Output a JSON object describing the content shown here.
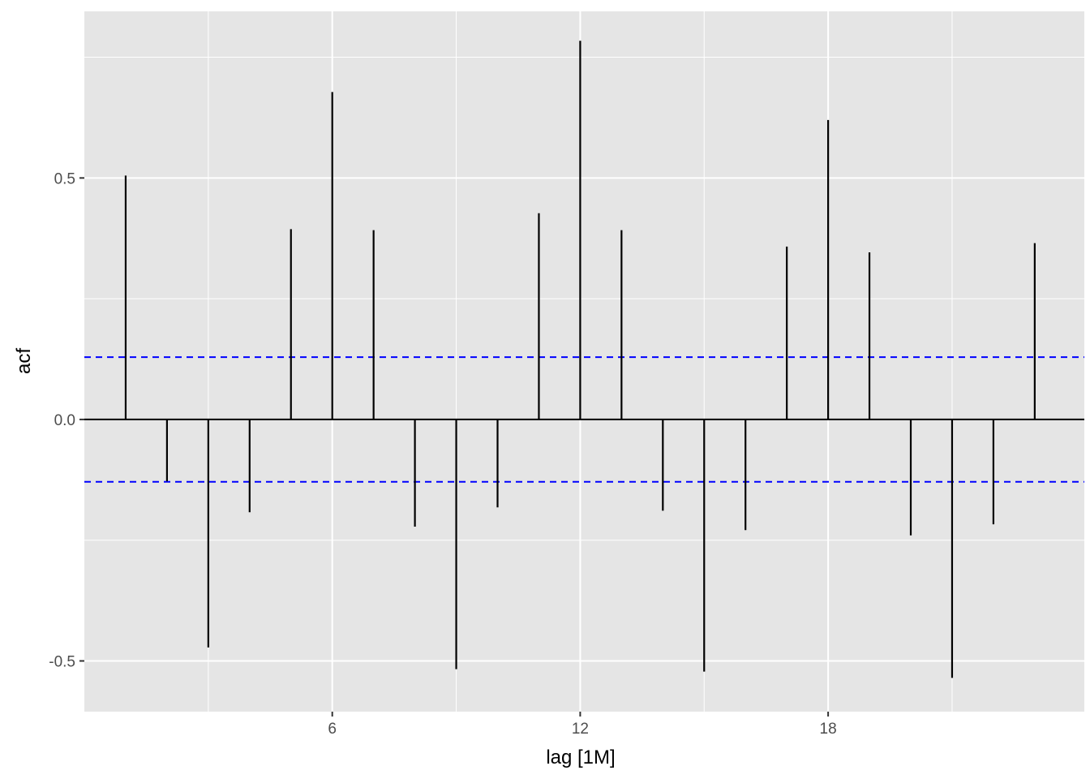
{
  "chart_data": {
    "type": "bar",
    "xlabel": "lag [1M]",
    "ylabel": "acf",
    "x": [
      1,
      2,
      3,
      4,
      5,
      6,
      7,
      8,
      9,
      10,
      11,
      12,
      13,
      14,
      15,
      16,
      17,
      18,
      19,
      20,
      21,
      22,
      23
    ],
    "values": [
      0.505,
      -0.128,
      -0.472,
      -0.192,
      0.394,
      0.678,
      0.392,
      -0.222,
      -0.517,
      -0.182,
      0.427,
      0.784,
      0.392,
      -0.189,
      -0.522,
      -0.229,
      0.358,
      0.62,
      0.346,
      -0.24,
      -0.535,
      -0.217,
      0.365
    ],
    "confidence_bounds": [
      0.129,
      -0.129
    ],
    "xlim": [
      0.0,
      24.2
    ],
    "ylim": [
      -0.605,
      0.845
    ],
    "x_ticks": [
      6,
      12,
      18
    ],
    "x_tick_labels": [
      "6",
      "12",
      "18"
    ],
    "y_ticks": [
      -0.5,
      0.0,
      0.5
    ],
    "y_tick_labels": [
      "-0.5",
      "0.0",
      "0.5"
    ],
    "grid": true,
    "bound_color": "#0000ff",
    "bar_color": "#000000",
    "panel_color": "#e5e5e5"
  }
}
